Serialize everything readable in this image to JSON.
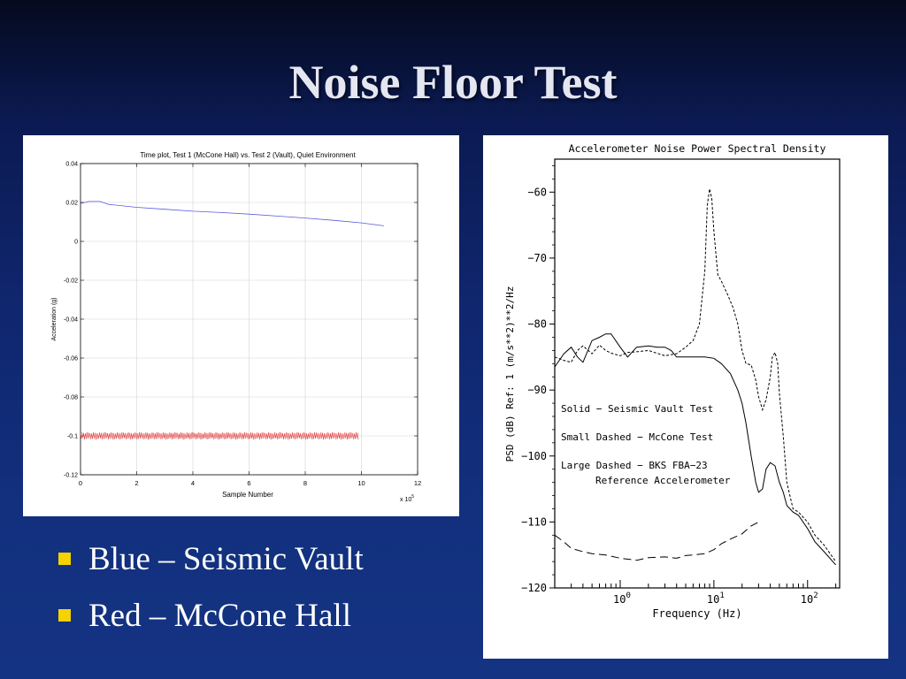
{
  "slide": {
    "title": "Noise Floor Test",
    "bullets": [
      {
        "text": "Blue – Seismic Vault",
        "marker": "square-bullet-icon"
      },
      {
        "text": "Red – McCone Hall",
        "marker": "square-bullet-icon"
      }
    ],
    "colors": {
      "bullet": "#f6d200",
      "title": "#e4e6f2",
      "background": "#10266e"
    }
  },
  "chart_data": [
    {
      "type": "line",
      "title": "Time plot, Test 1 (McCone Hall) vs. Test 2 (Vault), Quiet Environment",
      "xlabel": "Sample Number",
      "ylabel": "Acceleration (g)",
      "x_multiplier": "x 10",
      "x_multiplier_exp": "5",
      "xlim": [
        0,
        12
      ],
      "ylim": [
        -0.12,
        0.04
      ],
      "xticks": [
        0,
        2,
        4,
        6,
        8,
        10,
        12
      ],
      "yticks": [
        -0.12,
        -0.1,
        -0.08,
        -0.06,
        -0.04,
        -0.02,
        0,
        0.02,
        0.04
      ],
      "ytick_labels": [
        "-0.12",
        "-0.1",
        "-0.08",
        "-0.06",
        "-0.04",
        "-0.02",
        "0",
        "0.02",
        "0.04"
      ],
      "grid": true,
      "series": [
        {
          "color": "#5a5ae0",
          "x": [
            0,
            0.3,
            0.7,
            1,
            2,
            3,
            4,
            5,
            6,
            7,
            8,
            9,
            10,
            10.8
          ],
          "y": [
            0.0195,
            0.0205,
            0.0205,
            0.019,
            0.0175,
            0.0165,
            0.0155,
            0.0148,
            0.014,
            0.013,
            0.012,
            0.0108,
            0.0095,
            0.008
          ]
        },
        {
          "color": "#e23030",
          "x_range": [
            0,
            9.9
          ],
          "center": -0.1,
          "amplitude": 0.002,
          "style": "noise band"
        }
      ]
    },
    {
      "type": "line",
      "title": "Accelerometer Noise Power Spectral Density",
      "xlabel": "Frequency (Hz)",
      "ylabel": "PSD (dB) Ref: 1 (m/s**2)**2/Hz",
      "xscale": "log",
      "xlim": [
        0.2,
        220
      ],
      "ylim": [
        -120,
        -55
      ],
      "yticks": [
        -120,
        -110,
        -100,
        -90,
        -80,
        -70,
        -60
      ],
      "ytick_labels": [
        "−120",
        "−110",
        "−100",
        "−90",
        "−80",
        "−70",
        "−60"
      ],
      "xtick_labels": [
        {
          "base": "10",
          "exp": "0",
          "value": 1
        },
        {
          "base": "10",
          "exp": "1",
          "value": 10
        },
        {
          "base": "10",
          "exp": "2",
          "value": 100
        }
      ],
      "legend": [
        "Solid − Seismic Vault Test",
        "Small Dashed − McCone Test",
        "Large Dashed − BKS FBA−23",
        "Reference Accelerometer"
      ],
      "series": [
        {
          "style": "solid",
          "x": [
            0.2,
            0.25,
            0.3,
            0.35,
            0.4,
            0.5,
            0.6,
            0.7,
            0.8,
            1.0,
            1.2,
            1.5,
            2.0,
            2.5,
            3.0,
            3.5,
            4,
            5,
            6,
            7,
            8,
            10,
            12,
            15,
            18,
            20,
            22,
            25,
            28,
            30,
            33,
            36,
            40,
            45,
            50,
            55,
            60,
            70,
            80,
            100,
            120,
            150,
            200
          ],
          "y": [
            -86.5,
            -84.5,
            -83.5,
            -85,
            -85.8,
            -82.5,
            -82,
            -81.5,
            -81.5,
            -83.5,
            -85,
            -83.5,
            -83.3,
            -83.5,
            -83.5,
            -84,
            -85,
            -85,
            -85,
            -85,
            -85,
            -85.2,
            -86,
            -87.5,
            -90,
            -92,
            -95,
            -100,
            -104,
            -105.5,
            -105,
            -102,
            -101,
            -101.5,
            -104,
            -105.5,
            -107.5,
            -108.5,
            -109,
            -111,
            -113,
            -114.5,
            -116.5
          ]
        },
        {
          "style": "small-dashed",
          "x": [
            0.2,
            0.25,
            0.3,
            0.35,
            0.4,
            0.5,
            0.6,
            0.7,
            0.8,
            1.0,
            1.2,
            1.5,
            2,
            3,
            4,
            5,
            6,
            7,
            8,
            8.5,
            9,
            9.5,
            10,
            11,
            12,
            14,
            16,
            18,
            20,
            22,
            25,
            28,
            30,
            33,
            36,
            40,
            42,
            45,
            48,
            50,
            55,
            60,
            70,
            80,
            100,
            120,
            150,
            200
          ],
          "y": [
            -85,
            -85.5,
            -85.8,
            -84,
            -83.3,
            -84.5,
            -83.2,
            -84,
            -84.4,
            -84.8,
            -84.3,
            -84.2,
            -84,
            -84.8,
            -84.5,
            -83.5,
            -82.5,
            -80,
            -72,
            -62,
            -59.5,
            -61,
            -66,
            -72.5,
            -73.5,
            -75.5,
            -77.5,
            -80,
            -84,
            -86,
            -86.2,
            -88.5,
            -91,
            -93,
            -91.5,
            -88,
            -85,
            -84.3,
            -86,
            -90.5,
            -97,
            -104,
            -108,
            -108.5,
            -110,
            -112,
            -113.5,
            -116
          ]
        },
        {
          "style": "large-dashed",
          "x": [
            0.2,
            0.25,
            0.3,
            0.4,
            0.5,
            0.7,
            1.0,
            1.5,
            2,
            3,
            4,
            5,
            6,
            8,
            10,
            12,
            15,
            20,
            25,
            30
          ],
          "y": [
            -112,
            -113,
            -114,
            -114.5,
            -114.8,
            -115,
            -115.5,
            -115.8,
            -115.4,
            -115.3,
            -115.5,
            -115.1,
            -115,
            -114.8,
            -114.2,
            -113.3,
            -112.6,
            -111.8,
            -110.6,
            -110
          ]
        }
      ]
    }
  ]
}
